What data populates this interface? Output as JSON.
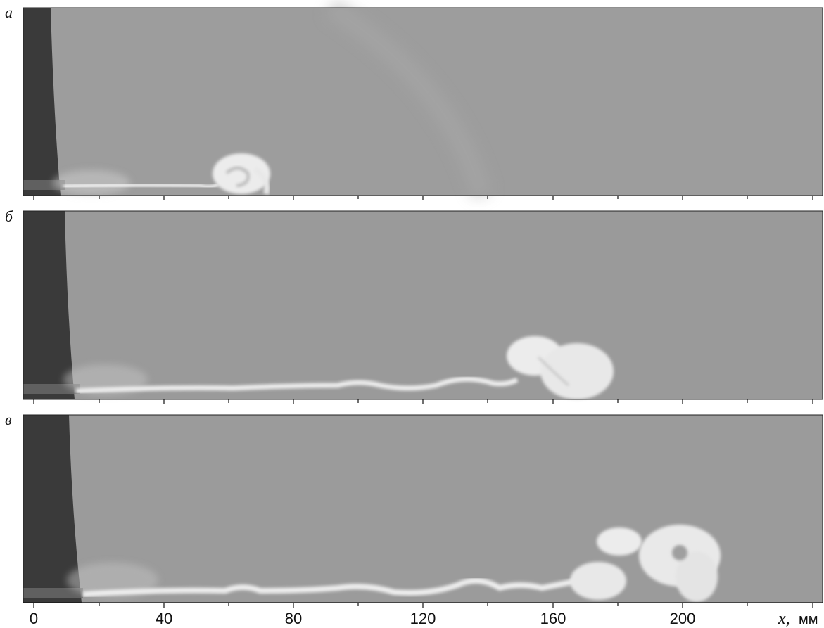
{
  "figure": {
    "panels": [
      {
        "letter": "а"
      },
      {
        "letter": "б"
      },
      {
        "letter": "в"
      }
    ],
    "axis": {
      "variable": "x,",
      "unit": "мм",
      "ticks": [
        "0",
        "40",
        "80",
        "120",
        "160",
        "200"
      ]
    },
    "colors": {
      "background_gray": "#9a9a9a",
      "wall_dark": "#3a3a3a",
      "jet_light": "#f2f2f2"
    }
  }
}
